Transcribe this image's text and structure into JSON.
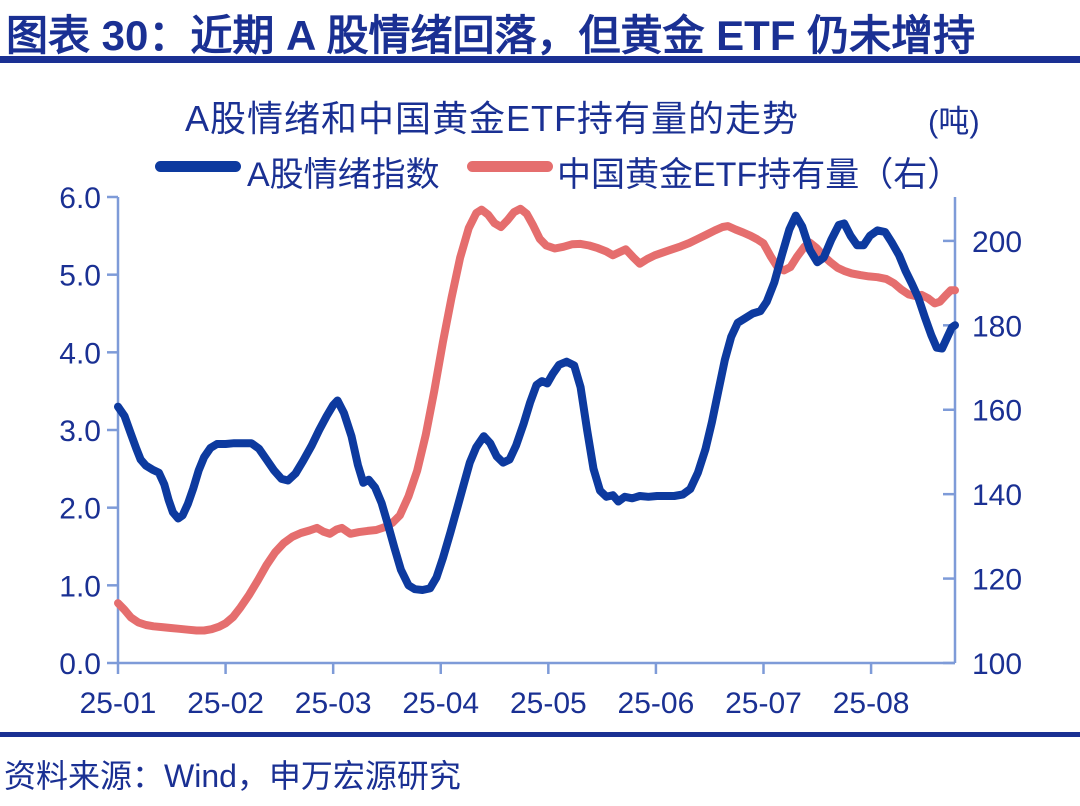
{
  "page": {
    "background": "#ffffff",
    "accent_navy": "#1a3093",
    "axis_color": "#7e9bd8"
  },
  "header": {
    "title": "图表 30：近期 A 股情绪回落，但黄金 ETF 仍未增持"
  },
  "footer": {
    "source": "资料来源：Wind，申万宏源研究"
  },
  "chart_data": {
    "type": "line",
    "title": "A股情绪和中国黄金ETF持有量的走势",
    "unit_label": "(吨)",
    "legend_position": "top",
    "grid": false,
    "line_width": 8,
    "x_axis": {
      "unit": "months since 2025-01 (x=0 is 25-01, monthly ticks)",
      "range": [
        0,
        7.78
      ],
      "ticks": [
        0,
        1,
        2,
        3,
        4,
        5,
        6,
        7
      ],
      "tick_labels": [
        "25-01",
        "25-02",
        "25-03",
        "25-04",
        "25-05",
        "25-06",
        "25-07",
        "25-08"
      ]
    },
    "left_axis": {
      "range": [
        0,
        6
      ],
      "ticks": [
        0,
        1,
        2,
        3,
        4,
        5,
        6
      ],
      "tick_labels": [
        "0.0",
        "1.0",
        "2.0",
        "3.0",
        "4.0",
        "5.0",
        "6.0"
      ]
    },
    "right_axis": {
      "range": [
        100,
        210.4
      ],
      "ticks": [
        100,
        120,
        140,
        160,
        180,
        200
      ],
      "tick_labels": [
        "100",
        "120",
        "140",
        "160",
        "180",
        "200"
      ]
    },
    "series": [
      {
        "name": "A股情绪指数",
        "axis": "left",
        "color": "#0d3a9f",
        "points": [
          [
            0.0,
            3.3
          ],
          [
            0.06,
            3.18
          ],
          [
            0.12,
            2.95
          ],
          [
            0.17,
            2.76
          ],
          [
            0.21,
            2.62
          ],
          [
            0.26,
            2.54
          ],
          [
            0.32,
            2.49
          ],
          [
            0.38,
            2.45
          ],
          [
            0.43,
            2.3
          ],
          [
            0.47,
            2.1
          ],
          [
            0.51,
            1.94
          ],
          [
            0.56,
            1.86
          ],
          [
            0.6,
            1.9
          ],
          [
            0.65,
            2.05
          ],
          [
            0.7,
            2.25
          ],
          [
            0.75,
            2.48
          ],
          [
            0.8,
            2.65
          ],
          [
            0.86,
            2.77
          ],
          [
            0.92,
            2.82
          ],
          [
            1.0,
            2.82
          ],
          [
            1.08,
            2.83
          ],
          [
            1.16,
            2.83
          ],
          [
            1.24,
            2.83
          ],
          [
            1.31,
            2.76
          ],
          [
            1.38,
            2.62
          ],
          [
            1.45,
            2.48
          ],
          [
            1.52,
            2.37
          ],
          [
            1.58,
            2.35
          ],
          [
            1.65,
            2.44
          ],
          [
            1.72,
            2.6
          ],
          [
            1.8,
            2.8
          ],
          [
            1.87,
            3.0
          ],
          [
            1.94,
            3.18
          ],
          [
            2.0,
            3.32
          ],
          [
            2.04,
            3.38
          ],
          [
            2.1,
            3.22
          ],
          [
            2.17,
            2.92
          ],
          [
            2.23,
            2.55
          ],
          [
            2.28,
            2.32
          ],
          [
            2.33,
            2.36
          ],
          [
            2.39,
            2.26
          ],
          [
            2.45,
            2.06
          ],
          [
            2.51,
            1.78
          ],
          [
            2.57,
            1.48
          ],
          [
            2.63,
            1.2
          ],
          [
            2.7,
            1.0
          ],
          [
            2.76,
            0.95
          ],
          [
            2.83,
            0.94
          ],
          [
            2.9,
            0.96
          ],
          [
            2.96,
            1.1
          ],
          [
            3.02,
            1.35
          ],
          [
            3.09,
            1.68
          ],
          [
            3.15,
            1.98
          ],
          [
            3.21,
            2.28
          ],
          [
            3.27,
            2.58
          ],
          [
            3.33,
            2.78
          ],
          [
            3.4,
            2.92
          ],
          [
            3.46,
            2.83
          ],
          [
            3.52,
            2.66
          ],
          [
            3.58,
            2.58
          ],
          [
            3.64,
            2.62
          ],
          [
            3.7,
            2.8
          ],
          [
            3.77,
            3.08
          ],
          [
            3.83,
            3.35
          ],
          [
            3.89,
            3.58
          ],
          [
            3.94,
            3.63
          ],
          [
            3.99,
            3.6
          ],
          [
            4.04,
            3.72
          ],
          [
            4.1,
            3.84
          ],
          [
            4.17,
            3.88
          ],
          [
            4.24,
            3.83
          ],
          [
            4.3,
            3.55
          ],
          [
            4.36,
            3.0
          ],
          [
            4.42,
            2.5
          ],
          [
            4.48,
            2.22
          ],
          [
            4.54,
            2.14
          ],
          [
            4.6,
            2.16
          ],
          [
            4.65,
            2.08
          ],
          [
            4.71,
            2.14
          ],
          [
            4.78,
            2.12
          ],
          [
            4.85,
            2.15
          ],
          [
            4.93,
            2.14
          ],
          [
            5.01,
            2.15
          ],
          [
            5.09,
            2.15
          ],
          [
            5.17,
            2.15
          ],
          [
            5.25,
            2.17
          ],
          [
            5.32,
            2.24
          ],
          [
            5.39,
            2.45
          ],
          [
            5.46,
            2.75
          ],
          [
            5.52,
            3.1
          ],
          [
            5.58,
            3.5
          ],
          [
            5.64,
            3.9
          ],
          [
            5.7,
            4.2
          ],
          [
            5.76,
            4.38
          ],
          [
            5.83,
            4.44
          ],
          [
            5.9,
            4.5
          ],
          [
            5.97,
            4.53
          ],
          [
            6.03,
            4.65
          ],
          [
            6.1,
            4.9
          ],
          [
            6.17,
            5.25
          ],
          [
            6.24,
            5.58
          ],
          [
            6.3,
            5.76
          ],
          [
            6.36,
            5.62
          ],
          [
            6.43,
            5.32
          ],
          [
            6.5,
            5.16
          ],
          [
            6.56,
            5.22
          ],
          [
            6.63,
            5.45
          ],
          [
            6.7,
            5.64
          ],
          [
            6.75,
            5.66
          ],
          [
            6.81,
            5.5
          ],
          [
            6.87,
            5.38
          ],
          [
            6.93,
            5.38
          ],
          [
            6.99,
            5.5
          ],
          [
            7.06,
            5.57
          ],
          [
            7.13,
            5.55
          ],
          [
            7.19,
            5.42
          ],
          [
            7.26,
            5.25
          ],
          [
            7.32,
            5.05
          ],
          [
            7.38,
            4.88
          ],
          [
            7.44,
            4.7
          ],
          [
            7.5,
            4.45
          ],
          [
            7.56,
            4.22
          ],
          [
            7.61,
            4.06
          ],
          [
            7.66,
            4.05
          ],
          [
            7.71,
            4.2
          ],
          [
            7.75,
            4.32
          ],
          [
            7.78,
            4.35
          ]
        ]
      },
      {
        "name": "中国黄金ETF持有量（右）",
        "axis": "right",
        "color": "#e56e6e",
        "points": [
          [
            0.0,
            114.2
          ],
          [
            0.06,
            112.6
          ],
          [
            0.12,
            110.8
          ],
          [
            0.19,
            109.6
          ],
          [
            0.26,
            109.0
          ],
          [
            0.33,
            108.7
          ],
          [
            0.41,
            108.5
          ],
          [
            0.49,
            108.3
          ],
          [
            0.57,
            108.1
          ],
          [
            0.65,
            107.9
          ],
          [
            0.73,
            107.7
          ],
          [
            0.8,
            107.7
          ],
          [
            0.87,
            108.0
          ],
          [
            0.94,
            108.6
          ],
          [
            1.0,
            109.4
          ],
          [
            1.07,
            110.9
          ],
          [
            1.14,
            113.2
          ],
          [
            1.22,
            116.2
          ],
          [
            1.3,
            119.6
          ],
          [
            1.38,
            123.2
          ],
          [
            1.46,
            126.2
          ],
          [
            1.54,
            128.4
          ],
          [
            1.62,
            129.9
          ],
          [
            1.7,
            130.8
          ],
          [
            1.78,
            131.4
          ],
          [
            1.85,
            132.0
          ],
          [
            1.91,
            131.1
          ],
          [
            1.97,
            130.6
          ],
          [
            2.03,
            131.6
          ],
          [
            2.08,
            132.0
          ],
          [
            2.16,
            130.6
          ],
          [
            2.24,
            131.0
          ],
          [
            2.32,
            131.3
          ],
          [
            2.4,
            131.5
          ],
          [
            2.48,
            132.2
          ],
          [
            2.55,
            133.2
          ],
          [
            2.62,
            135.0
          ],
          [
            2.7,
            139.5
          ],
          [
            2.78,
            145.5
          ],
          [
            2.86,
            154.0
          ],
          [
            2.94,
            164.5
          ],
          [
            3.02,
            176.0
          ],
          [
            3.1,
            186.5
          ],
          [
            3.18,
            196.0
          ],
          [
            3.26,
            203.0
          ],
          [
            3.33,
            206.6
          ],
          [
            3.38,
            207.4
          ],
          [
            3.44,
            206.2
          ],
          [
            3.5,
            204.2
          ],
          [
            3.56,
            203.3
          ],
          [
            3.62,
            204.9
          ],
          [
            3.68,
            206.8
          ],
          [
            3.74,
            207.6
          ],
          [
            3.8,
            206.4
          ],
          [
            3.86,
            203.6
          ],
          [
            3.92,
            200.5
          ],
          [
            3.98,
            198.9
          ],
          [
            4.06,
            198.2
          ],
          [
            4.14,
            198.6
          ],
          [
            4.22,
            199.2
          ],
          [
            4.3,
            199.3
          ],
          [
            4.38,
            198.9
          ],
          [
            4.46,
            198.3
          ],
          [
            4.54,
            197.5
          ],
          [
            4.6,
            196.6
          ],
          [
            4.66,
            197.3
          ],
          [
            4.72,
            198.0
          ],
          [
            4.79,
            196.1
          ],
          [
            4.85,
            194.6
          ],
          [
            4.92,
            195.7
          ],
          [
            4.99,
            196.6
          ],
          [
            5.07,
            197.3
          ],
          [
            5.15,
            198.0
          ],
          [
            5.23,
            198.7
          ],
          [
            5.31,
            199.5
          ],
          [
            5.39,
            200.5
          ],
          [
            5.47,
            201.5
          ],
          [
            5.55,
            202.5
          ],
          [
            5.62,
            203.3
          ],
          [
            5.67,
            203.5
          ],
          [
            5.74,
            202.7
          ],
          [
            5.81,
            202.0
          ],
          [
            5.88,
            201.2
          ],
          [
            5.94,
            200.4
          ],
          [
            6.0,
            199.4
          ],
          [
            6.07,
            196.2
          ],
          [
            6.13,
            193.8
          ],
          [
            6.19,
            193.0
          ],
          [
            6.25,
            193.8
          ],
          [
            6.31,
            196.2
          ],
          [
            6.38,
            198.6
          ],
          [
            6.43,
            199.6
          ],
          [
            6.49,
            198.4
          ],
          [
            6.56,
            196.4
          ],
          [
            6.62,
            195.0
          ],
          [
            6.69,
            193.6
          ],
          [
            6.75,
            192.9
          ],
          [
            6.82,
            192.3
          ],
          [
            6.9,
            191.9
          ],
          [
            6.98,
            191.6
          ],
          [
            7.06,
            191.4
          ],
          [
            7.14,
            191.0
          ],
          [
            7.21,
            190.0
          ],
          [
            7.28,
            188.5
          ],
          [
            7.35,
            187.3
          ],
          [
            7.42,
            186.9
          ],
          [
            7.47,
            187.2
          ],
          [
            7.53,
            186.4
          ],
          [
            7.59,
            185.2
          ],
          [
            7.64,
            185.6
          ],
          [
            7.69,
            187.0
          ],
          [
            7.74,
            188.3
          ],
          [
            7.78,
            188.3
          ]
        ]
      }
    ]
  }
}
